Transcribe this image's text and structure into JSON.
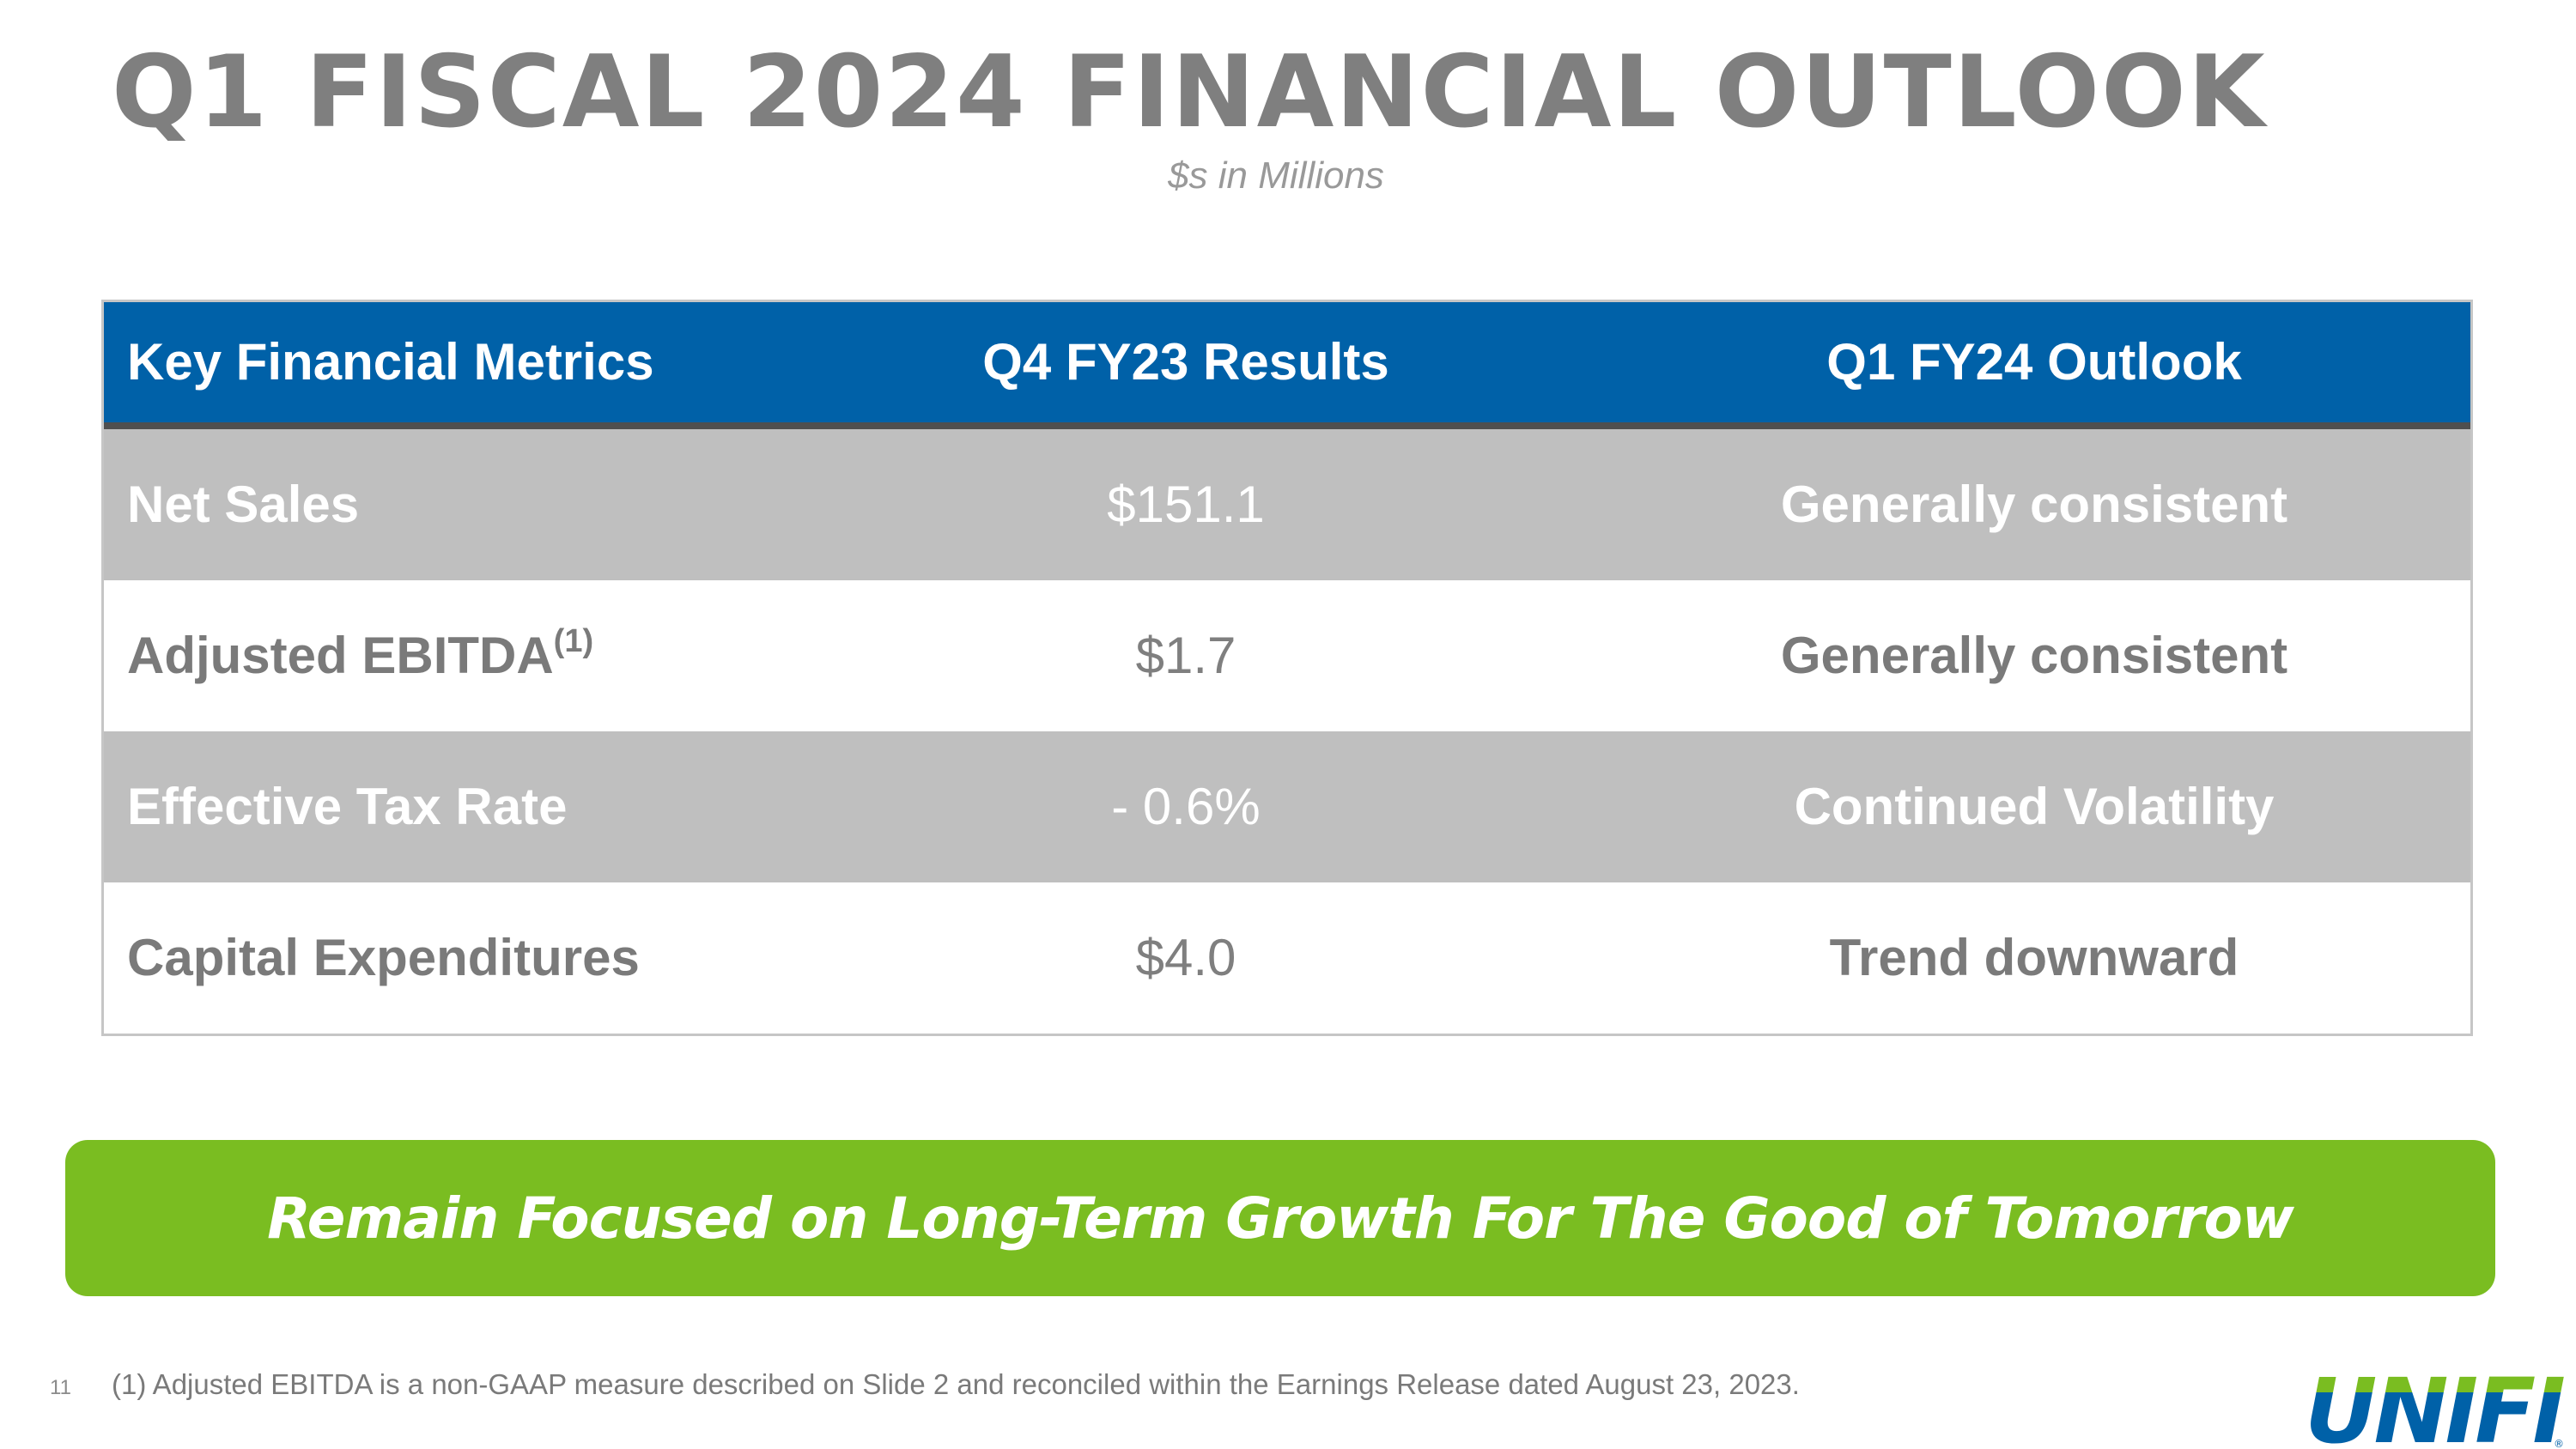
{
  "slide": {
    "title": "Q1 FISCAL 2024 FINANCIAL OUTLOOK",
    "subtitle": "$s in Millions",
    "page_number": "11"
  },
  "table": {
    "headers": [
      "Key Financial Metrics",
      "Q4 FY23 Results",
      "Q1 FY24 Outlook"
    ],
    "rows": [
      {
        "metric": "Net Sales",
        "superscript": "",
        "result": "$151.1",
        "outlook": "Generally consistent"
      },
      {
        "metric": "Adjusted EBITDA",
        "superscript": "(1)",
        "result": "$1.7",
        "outlook": "Generally consistent"
      },
      {
        "metric": "Effective Tax Rate",
        "superscript": "",
        "result": "- 0.6%",
        "outlook": "Continued Volatility"
      },
      {
        "metric": "Capital Expenditures",
        "superscript": "",
        "result": "$4.0",
        "outlook": "Trend downward"
      }
    ]
  },
  "banner": {
    "text": "Remain Focused on Long-Term Growth For The Good of Tomorrow",
    "color": "#7abd21"
  },
  "footnote": "(1) Adjusted EBITDA is a non-GAAP measure described on Slide 2 and reconciled within the Earnings Release dated August 23, 2023.",
  "logo": {
    "text": "UNIFI",
    "mark": "®",
    "colors": {
      "top": "#7abd21",
      "bottom": "#0061a8"
    }
  },
  "colors": {
    "header_bg": "#0061a8",
    "shaded_row_bg": "#bfbfbf",
    "title_text": "#7f7f7f"
  }
}
